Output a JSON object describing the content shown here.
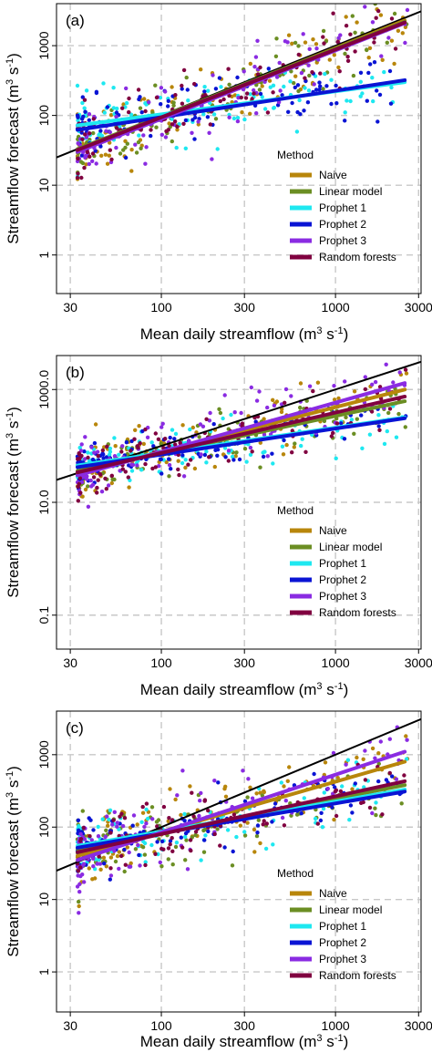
{
  "colors": {
    "Naive": "#b8860b",
    "Linear model": "#6b8e23",
    "Prophet 1": "#1ee8f0",
    "Prophet 2": "#0a14d4",
    "Prophet 3": "#8a2be2",
    "Random forests": "#800040",
    "identity": "#000000"
  },
  "chart_data": [
    {
      "type": "scatter",
      "panel": "(a)",
      "xlabel": "Mean daily streamflow (m^3 s^-1)",
      "ylabel": "Streamflow forecast (m^3 s^-1)",
      "x_scale": "log",
      "y_scale": "log",
      "xlim": [
        25,
        3100
      ],
      "ylim": [
        0.28,
        4000
      ],
      "x_ticks": [
        30,
        100,
        300,
        1000,
        3000
      ],
      "x_tick_labels": [
        "30",
        "100",
        "300",
        "1000",
        "3000"
      ],
      "y_ticks": [
        1,
        10,
        100,
        1000
      ],
      "y_tick_labels": [
        "1",
        "10",
        "100",
        "1000"
      ],
      "grid": true,
      "legend_title": "Method",
      "legend_position": "right",
      "series": [
        {
          "name": "Naive",
          "fit": [
            [
              33,
              31
            ],
            [
              2500,
              2300
            ]
          ]
        },
        {
          "name": "Linear model",
          "fit": [
            [
              33,
              33
            ],
            [
              2500,
              2200
            ]
          ]
        },
        {
          "name": "Prophet 1",
          "fit": [
            [
              33,
              72
            ],
            [
              2500,
              300
            ]
          ]
        },
        {
          "name": "Prophet 2",
          "fit": [
            [
              33,
              62
            ],
            [
              2500,
              320
            ]
          ]
        },
        {
          "name": "Prophet 3",
          "fit": [
            [
              33,
              30
            ],
            [
              2500,
              2100
            ]
          ]
        },
        {
          "name": "Random forests",
          "fit": [
            [
              33,
              32
            ],
            [
              2500,
              2150
            ]
          ]
        }
      ],
      "identity_line": true
    },
    {
      "type": "scatter",
      "panel": "(b)",
      "xlabel": "Mean daily streamflow (m^3 s^-1)",
      "ylabel": "Streamflow forecast (m^3 s^-1)",
      "x_scale": "log",
      "y_scale": "log",
      "xlim": [
        25,
        3100
      ],
      "ylim": [
        0.025,
        4000
      ],
      "x_ticks": [
        30,
        100,
        300,
        1000,
        3000
      ],
      "x_tick_labels": [
        "30",
        "100",
        "300",
        "1000",
        "3000"
      ],
      "y_ticks": [
        0.1,
        10,
        1000
      ],
      "y_tick_labels": [
        "0.1",
        "10.0",
        "1000.0"
      ],
      "grid": true,
      "legend_title": "Method",
      "legend_position": "right",
      "series": [
        {
          "name": "Naive",
          "fit": [
            [
              33,
              33
            ],
            [
              2500,
              1000
            ]
          ]
        },
        {
          "name": "Linear model",
          "fit": [
            [
              33,
              36
            ],
            [
              2500,
              620
            ]
          ]
        },
        {
          "name": "Prophet 1",
          "fit": [
            [
              33,
              45
            ],
            [
              2500,
              320
            ]
          ]
        },
        {
          "name": "Prophet 2",
          "fit": [
            [
              33,
              42
            ],
            [
              2500,
              310
            ]
          ]
        },
        {
          "name": "Prophet 3",
          "fit": [
            [
              33,
              30
            ],
            [
              2500,
              1300
            ]
          ]
        },
        {
          "name": "Random forests",
          "fit": [
            [
              33,
              34
            ],
            [
              2500,
              750
            ]
          ]
        }
      ],
      "identity_line": true
    },
    {
      "type": "scatter",
      "panel": "(c)",
      "xlabel": "Mean daily streamflow (m^3 s^-1)",
      "ylabel": "Streamflow forecast (m^3 s^-1)",
      "x_scale": "log",
      "y_scale": "log",
      "xlim": [
        25,
        3100
      ],
      "ylim": [
        0.28,
        4000
      ],
      "x_ticks": [
        30,
        100,
        300,
        1000,
        3000
      ],
      "x_tick_labels": [
        "30",
        "100",
        "300",
        "1000",
        "3000"
      ],
      "y_ticks": [
        1,
        10,
        100,
        1000
      ],
      "y_tick_labels": [
        "1",
        "10",
        "100",
        "1000"
      ],
      "grid": true,
      "legend_title": "Method",
      "legend_position": "right",
      "series": [
        {
          "name": "Naive",
          "fit": [
            [
              33,
              40
            ],
            [
              2500,
              800
            ]
          ]
        },
        {
          "name": "Linear model",
          "fit": [
            [
              33,
              50
            ],
            [
              2500,
              380
            ]
          ]
        },
        {
          "name": "Prophet 1",
          "fit": [
            [
              33,
              55
            ],
            [
              2500,
              330
            ]
          ]
        },
        {
          "name": "Prophet 2",
          "fit": [
            [
              33,
              52
            ],
            [
              2500,
              310
            ]
          ]
        },
        {
          "name": "Prophet 3",
          "fit": [
            [
              33,
              35
            ],
            [
              2500,
              1100
            ]
          ]
        },
        {
          "name": "Random forests",
          "fit": [
            [
              33,
              45
            ],
            [
              2500,
              430
            ]
          ]
        }
      ],
      "identity_line": true
    }
  ]
}
